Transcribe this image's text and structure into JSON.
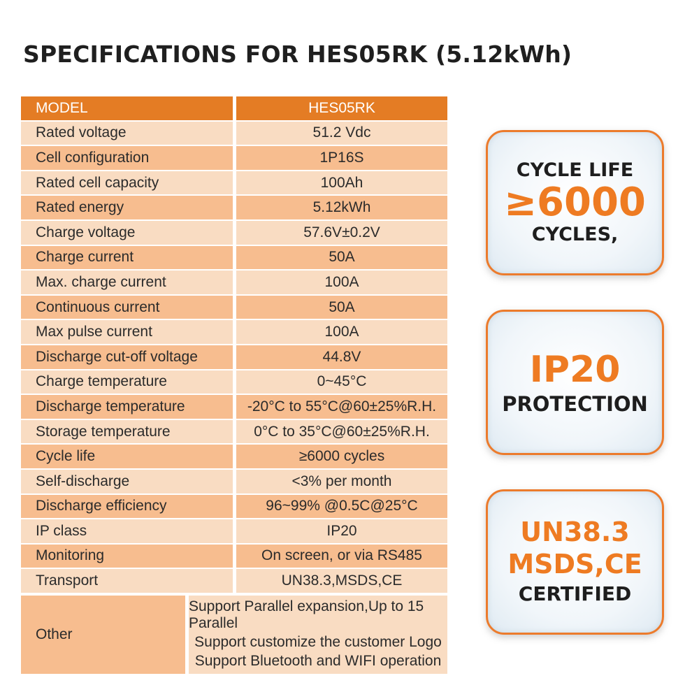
{
  "title": "SPECIFICATIONS FOR HES05RK (5.12kWh)",
  "table": {
    "header": {
      "label": "MODEL",
      "value": "HES05RK"
    },
    "rows": [
      {
        "label": "Rated voltage",
        "value": "51.2 Vdc"
      },
      {
        "label": "Cell configuration",
        "value": "1P16S"
      },
      {
        "label": "Rated cell capacity",
        "value": "100Ah"
      },
      {
        "label": "Rated energy",
        "value": "5.12kWh"
      },
      {
        "label": "Charge voltage",
        "value": "57.6V±0.2V"
      },
      {
        "label": "Charge current",
        "value": "50A"
      },
      {
        "label": "Max. charge current",
        "value": "100A"
      },
      {
        "label": "Continuous current",
        "value": "50A"
      },
      {
        "label": "Max pulse current",
        "value": "100A"
      },
      {
        "label": "Discharge cut-off voltage",
        "value": "44.8V"
      },
      {
        "label": "Charge temperature",
        "value": "0~45°C"
      },
      {
        "label": "Discharge temperature",
        "value": "-20°C to 55°C@60±25%R.H."
      },
      {
        "label": "Storage temperature",
        "value": "0°C to 35°C@60±25%R.H."
      },
      {
        "label": "Cycle life",
        "value": "≥6000 cycles"
      },
      {
        "label": "Self-discharge",
        "value": "<3% per month"
      },
      {
        "label": "Discharge efficiency",
        "value": "96~99% @0.5C@25°C"
      },
      {
        "label": "IP class",
        "value": "IP20"
      },
      {
        "label": "Monitoring",
        "value": "On screen, or via RS485"
      },
      {
        "label": "Transport",
        "value": "UN38.3,MSDS,CE"
      }
    ],
    "other": {
      "label": "Other",
      "lines": [
        "Support Parallel expansion,Up to 15 Parallel",
        "Support customize the customer Logo",
        "Support Bluetooth and WIFI operation"
      ]
    }
  },
  "badges": {
    "cycle": {
      "line1": "CYCLE LIFE",
      "line2": "≥6000",
      "line3": "CYCLES,"
    },
    "ip": {
      "line1": "IP20",
      "line2": "PROTECTION"
    },
    "cert": {
      "line1": "UN38.3",
      "line2": "MSDS,CE",
      "line3": "CERTIFIED"
    }
  },
  "colors": {
    "header": "#e47c24",
    "row_light": "#f9dcc2",
    "row_dark": "#f7bd8f",
    "accent": "#ee7b22"
  }
}
